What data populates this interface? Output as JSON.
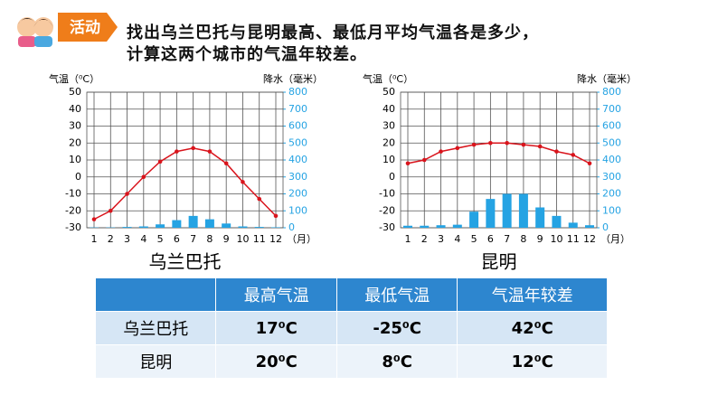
{
  "header": {
    "badge": "活动",
    "lines": [
      "找出乌兰巴托与昆明最高、最低月平均气温各是多少，",
      "计算这两个城市的气温年较差。"
    ]
  },
  "chart_data": [
    {
      "type": "combo",
      "title": "乌兰巴托",
      "ylabel": "气温（⁰C）",
      "y2label": "降水（毫米）",
      "xlabel": "（月）",
      "categories": [
        "1",
        "2",
        "3",
        "4",
        "5",
        "6",
        "7",
        "8",
        "9",
        "10",
        "11",
        "12"
      ],
      "series": [
        {
          "color": "#d9141c",
          "values": [
            -25,
            -20,
            -10,
            0,
            9,
            15,
            17,
            15,
            8,
            -3,
            -13,
            -23
          ]
        },
        {
          "color": "#25a3e3",
          "axis": "y2",
          "values": [
            2,
            2,
            5,
            8,
            20,
            45,
            70,
            50,
            25,
            8,
            5,
            3
          ]
        }
      ],
      "ylim": [
        -30,
        50
      ],
      "yticks": [
        -30,
        -20,
        -10,
        0,
        10,
        20,
        30,
        40,
        50
      ],
      "y2lim": [
        0,
        800
      ],
      "y2ticks": [
        0,
        100,
        200,
        300,
        400,
        500,
        600,
        700,
        800
      ],
      "grid": true
    },
    {
      "type": "combo",
      "title": "昆明",
      "ylabel": "气温（⁰C）",
      "y2label": "降水（毫米）",
      "xlabel": "（月）",
      "categories": [
        "1",
        "2",
        "3",
        "4",
        "5",
        "6",
        "7",
        "8",
        "9",
        "10",
        "11",
        "12"
      ],
      "series": [
        {
          "color": "#d9141c",
          "values": [
            8,
            10,
            15,
            17,
            19,
            20,
            20,
            19,
            18,
            15,
            13,
            8
          ]
        },
        {
          "color": "#25a3e3",
          "axis": "y2",
          "values": [
            12,
            12,
            15,
            18,
            95,
            170,
            200,
            200,
            120,
            70,
            30,
            15
          ]
        }
      ],
      "ylim": [
        -30,
        50
      ],
      "yticks": [
        -30,
        -20,
        -10,
        0,
        10,
        20,
        30,
        40,
        50
      ],
      "y2lim": [
        0,
        800
      ],
      "y2ticks": [
        0,
        100,
        200,
        300,
        400,
        500,
        600,
        700,
        800
      ],
      "grid": true
    }
  ],
  "table": {
    "header": [
      "",
      "最高气温",
      "最低气温",
      "气温年较差"
    ],
    "rows": [
      [
        "乌兰巴托",
        "17⁰C",
        "-25⁰C",
        "42⁰C"
      ],
      [
        "昆明",
        "20⁰C",
        "8⁰C",
        "12⁰C"
      ]
    ]
  }
}
